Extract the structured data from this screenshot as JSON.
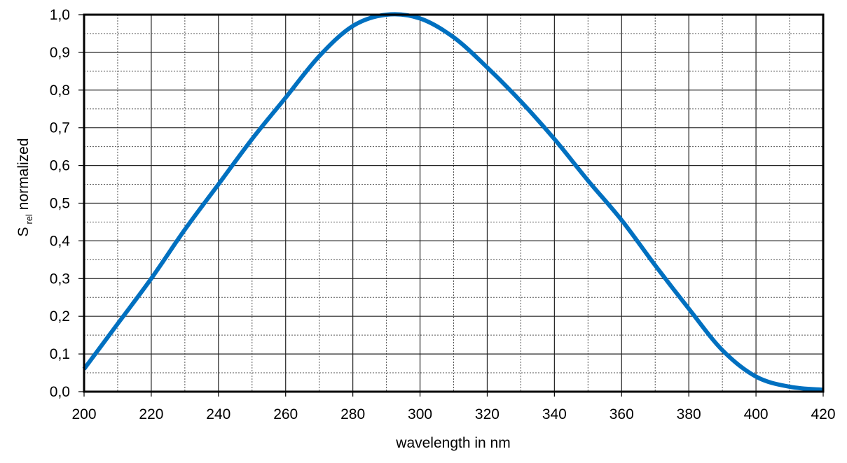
{
  "chart_data": {
    "type": "line",
    "title": "",
    "xlabel": "wavelength in nm",
    "ylabel": {
      "main": "S",
      "subscript": "rel",
      "suffix": " normalized"
    },
    "xlim": [
      200,
      420
    ],
    "ylim": [
      0,
      1.0
    ],
    "x_ticks": [
      "200",
      "220",
      "240",
      "260",
      "280",
      "300",
      "320",
      "340",
      "360",
      "380",
      "400",
      "420"
    ],
    "y_ticks": [
      "0,0",
      "0,1",
      "0,2",
      "0,3",
      "0,4",
      "0,5",
      "0,6",
      "0,7",
      "0,8",
      "0,9",
      "1,0"
    ],
    "grid": {
      "major": true,
      "minor_dotted": true
    },
    "legend": "none",
    "series": [
      {
        "color": "#0070C0",
        "x": [
          200,
          210,
          220,
          230,
          240,
          250,
          260,
          270,
          280,
          290,
          300,
          310,
          320,
          330,
          340,
          350,
          360,
          370,
          380,
          390,
          400,
          410,
          420
        ],
        "y": [
          0.06,
          0.18,
          0.3,
          0.43,
          0.55,
          0.67,
          0.78,
          0.89,
          0.97,
          1.0,
          0.99,
          0.94,
          0.86,
          0.77,
          0.67,
          0.56,
          0.455,
          0.335,
          0.22,
          0.11,
          0.04,
          0.013,
          0.005
        ]
      }
    ]
  }
}
